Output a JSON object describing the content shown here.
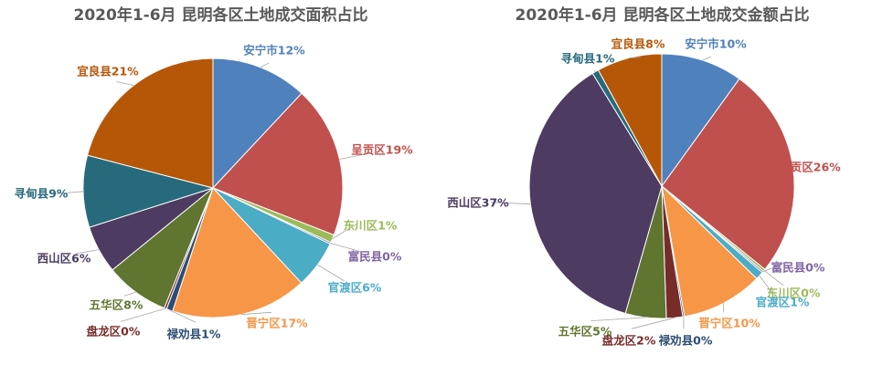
{
  "chart_data": [
    {
      "type": "pie",
      "title": "2020年1-6月 昆明各区土地成交面积占比",
      "slices": [
        {
          "label": "安宁市12%",
          "value": 12,
          "color": "#4f81bd",
          "text_color": "#4f81bd"
        },
        {
          "label": "呈贡区19%",
          "value": 19,
          "color": "#c0504d",
          "text_color": "#c0504d"
        },
        {
          "label": "东川区1%",
          "value": 1,
          "color": "#9bbb59",
          "text_color": "#9bbb59"
        },
        {
          "label": "富民县0%",
          "value": 0.2,
          "color": "#8064a2",
          "text_color": "#8064a2"
        },
        {
          "label": "官渡区6%",
          "value": 6,
          "color": "#4bacc6",
          "text_color": "#4bacc6"
        },
        {
          "label": "晋宁区17%",
          "value": 17,
          "color": "#f79646",
          "text_color": "#f79646"
        },
        {
          "label": "禄劝县1%",
          "value": 0.8,
          "color": "#2c4d75",
          "text_color": "#2c4d75"
        },
        {
          "label": "盘龙区0%",
          "value": 0.3,
          "color": "#772c2a",
          "text_color": "#772c2a"
        },
        {
          "label": "五华区8%",
          "value": 8,
          "color": "#5f7530",
          "text_color": "#5f7530"
        },
        {
          "label": "西山区6%",
          "value": 6,
          "color": "#4d3b62",
          "text_color": "#4d3b62"
        },
        {
          "label": "寻甸县9%",
          "value": 9,
          "color": "#276a7c",
          "text_color": "#276a7c"
        },
        {
          "label": "宜良县21%",
          "value": 21,
          "color": "#b65708",
          "text_color": "#b65708"
        }
      ]
    },
    {
      "type": "pie",
      "title": "2020年1-6月 昆明各区土地成交金额占比",
      "slices": [
        {
          "label": "安宁市10%",
          "value": 10,
          "color": "#4f81bd",
          "text_color": "#4f81bd"
        },
        {
          "label": "呈贡区26%",
          "value": 26,
          "color": "#c0504d",
          "text_color": "#c0504d"
        },
        {
          "label": "东川区0%",
          "value": 0.3,
          "color": "#9bbb59",
          "text_color": "#9bbb59"
        },
        {
          "label": "富民县0%",
          "value": 0.2,
          "color": "#8064a2",
          "text_color": "#8064a2"
        },
        {
          "label": "官渡区1%",
          "value": 1,
          "color": "#4bacc6",
          "text_color": "#4bacc6"
        },
        {
          "label": "晋宁区10%",
          "value": 10,
          "color": "#f79646",
          "text_color": "#f79646"
        },
        {
          "label": "禄劝县0%",
          "value": 0.2,
          "color": "#2c4d75",
          "text_color": "#2c4d75"
        },
        {
          "label": "盘龙区2%",
          "value": 2,
          "color": "#772c2a",
          "text_color": "#772c2a"
        },
        {
          "label": "五华区5%",
          "value": 5,
          "color": "#5f7530",
          "text_color": "#5f7530"
        },
        {
          "label": "西山区37%",
          "value": 37,
          "color": "#4d3b62",
          "text_color": "#4d3b62"
        },
        {
          "label": "寻甸县1%",
          "value": 0.8,
          "color": "#276a7c",
          "text_color": "#276a7c"
        },
        {
          "label": "宜良县8%",
          "value": 8,
          "color": "#b65708",
          "text_color": "#b65708"
        }
      ]
    }
  ]
}
